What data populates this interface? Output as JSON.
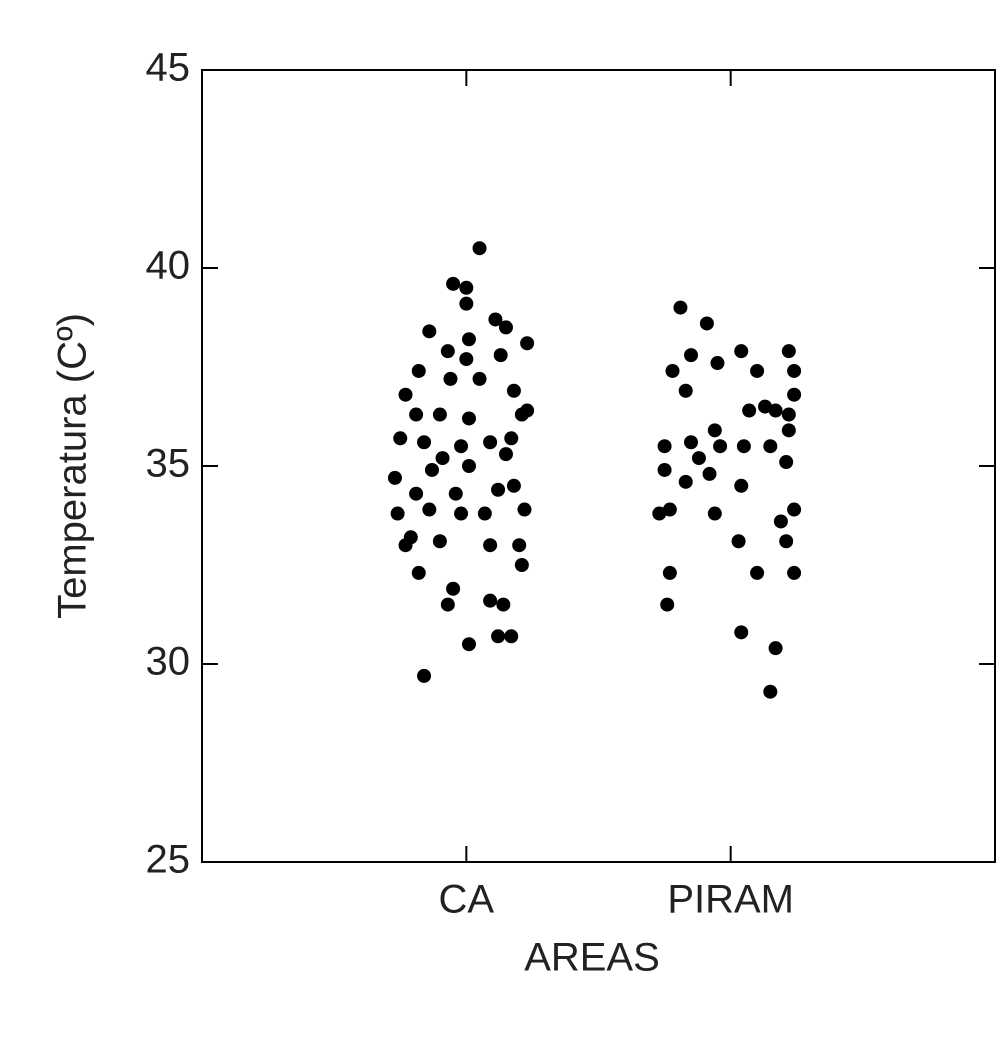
{
  "chart_data": {
    "type": "scatter",
    "xlabel": "AREAS",
    "ylabel": "Temperatura (Cº)",
    "color": "#000000",
    "xlim": [
      0,
      3
    ],
    "xticks": [
      {
        "value": 1,
        "label": "CA"
      },
      {
        "value": 2,
        "label": "PIRAM"
      }
    ],
    "ylim": [
      25,
      45
    ],
    "yticks": [
      25,
      30,
      35,
      40,
      45
    ],
    "x": [
      1.05,
      0.84,
      1.01,
      1.12,
      1.17,
      1.09,
      1.14,
      0.93,
      0.95,
      0.82,
      1.21,
      0.77,
      0.9,
      0.79,
      1.09,
      1.2,
      0.74,
      0.86,
      0.98,
      1.07,
      1.22,
      0.81,
      0.96,
      1.12,
      1.18,
      0.73,
      0.87,
      1.01,
      1.15,
      0.75,
      0.84,
      0.98,
      1.09,
      0.81,
      0.9,
      1.01,
      1.21,
      0.77,
      0.94,
      1.05,
      1.18,
      0.82,
      1.0,
      1.13,
      0.86,
      1.01,
      1.23,
      1.15,
      1.11,
      0.93,
      1.0,
      1.0,
      0.95,
      1.17,
      1.23,
      0.91,
      1.81,
      1.91,
      1.78,
      1.85,
      1.95,
      2.04,
      2.22,
      2.24,
      2.1,
      1.83,
      2.24,
      2.07,
      2.17,
      2.22,
      2.13,
      1.94,
      2.22,
      1.75,
      1.85,
      1.96,
      2.05,
      2.15,
      1.88,
      2.21,
      1.75,
      1.83,
      1.92,
      2.04,
      1.73,
      1.77,
      1.94,
      2.24,
      2.19,
      2.03,
      2.21,
      1.77,
      2.1,
      2.24,
      1.76,
      2.04,
      2.17,
      2.15
    ],
    "values": [
      40.5,
      29.7,
      30.5,
      30.7,
      30.7,
      31.6,
      31.5,
      31.5,
      31.9,
      32.3,
      32.5,
      33.0,
      33.1,
      33.2,
      33.0,
      33.0,
      33.8,
      33.9,
      33.8,
      33.8,
      33.9,
      34.3,
      34.3,
      34.4,
      34.5,
      34.7,
      34.9,
      35.0,
      35.3,
      35.7,
      35.6,
      35.5,
      35.6,
      36.3,
      36.3,
      36.2,
      36.3,
      36.8,
      37.2,
      37.2,
      36.9,
      37.4,
      37.7,
      37.8,
      38.4,
      38.2,
      38.1,
      38.5,
      38.7,
      37.9,
      39.1,
      39.5,
      39.6,
      35.7,
      36.4,
      35.2,
      39.0,
      38.6,
      37.4,
      37.8,
      37.6,
      37.9,
      37.9,
      37.4,
      37.4,
      36.9,
      36.8,
      36.4,
      36.4,
      36.3,
      36.5,
      35.9,
      35.9,
      35.5,
      35.6,
      35.5,
      35.5,
      35.5,
      35.2,
      35.1,
      34.9,
      34.6,
      34.8,
      34.5,
      33.8,
      33.9,
      33.8,
      33.9,
      33.6,
      33.1,
      33.1,
      32.3,
      32.3,
      32.3,
      31.5,
      30.8,
      30.4,
      29.3
    ]
  }
}
